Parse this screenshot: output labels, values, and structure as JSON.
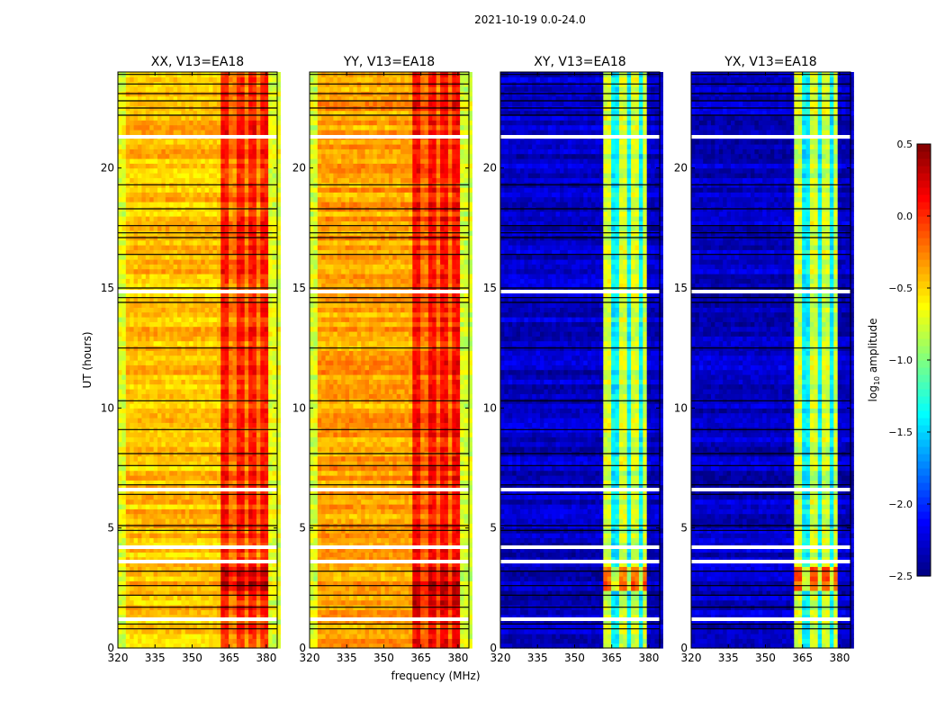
{
  "chart_data": {
    "type": "heatmap",
    "suptitle": "2021-10-19 0.0-24.0",
    "xlabel": "frequency (MHz)",
    "ylabel": "UT (hours)",
    "xlim": [
      320,
      384.4
    ],
    "ylim": [
      0,
      24
    ],
    "xticks": [
      320,
      335,
      350,
      365,
      380
    ],
    "yticks": [
      0,
      5,
      10,
      15,
      20
    ],
    "colorbar": {
      "label_main": "log",
      "label_sub": "10",
      "label_rest": " amplitude",
      "range": [
        -2.5,
        0.5
      ],
      "ticks": [
        "0.5",
        "0.0",
        "−0.5",
        "−1.0",
        "−1.5",
        "−2.0",
        "−2.5"
      ],
      "tick_values": [
        0.5,
        0.0,
        -0.5,
        -1.0,
        -1.5,
        -2.0,
        -2.5
      ],
      "colormap": "jet"
    },
    "flagged_white_hours": [
      21.3,
      14.85,
      6.6,
      4.2,
      3.6,
      1.2
    ],
    "flagged_black_hours": [
      23.9,
      23.5,
      23.1,
      22.8,
      22.5,
      22.2,
      19.3,
      18.3,
      17.6,
      17.3,
      17.1,
      16.4,
      15.0,
      14.6,
      14.4,
      12.5,
      10.3,
      9.1,
      8.1,
      7.6,
      6.8,
      6.4,
      5.1,
      4.9,
      3.2,
      2.6,
      2.2,
      1.7,
      1.0,
      0.8
    ],
    "panels": [
      {
        "title": "XX, V13=EA18",
        "base_level": -0.45,
        "band": [
          362,
          380.5
        ],
        "band_level": 0.05,
        "stripes": [
          366.5,
          371.5,
          376.5
        ],
        "stripe_level": -0.25,
        "edge_level": -0.7,
        "hot_hours": [
          2.3,
          3.3
        ],
        "hot_delta": 0.25
      },
      {
        "title": "YY, V13=EA18",
        "base_level": -0.35,
        "band": [
          362,
          380.5
        ],
        "band_level": 0.1,
        "stripes": [
          366.5,
          371.5,
          376.5
        ],
        "stripe_level": -0.2,
        "edge_level": -0.75,
        "hot_hours": [
          1.5,
          3.3
        ],
        "hot_delta": 0.2
      },
      {
        "title": "XY, V13=EA18",
        "base_level": -2.3,
        "band": [
          362,
          379.5
        ],
        "band_level": -0.75,
        "stripes": [
          366.5,
          371.5,
          376.5
        ],
        "stripe_level": -1.4,
        "edge_level": -2.3,
        "hot_hours": [
          2.3,
          3.3
        ],
        "hot_delta": 0.6
      },
      {
        "title": "YX, V13=EA18",
        "base_level": -2.3,
        "band": [
          362,
          379.5
        ],
        "band_level": -0.75,
        "stripes": [
          366.5,
          371.5,
          376.5
        ],
        "stripe_level": -1.4,
        "edge_level": -2.3,
        "hot_hours": [
          2.3,
          3.3
        ],
        "hot_delta": 0.6
      }
    ]
  }
}
